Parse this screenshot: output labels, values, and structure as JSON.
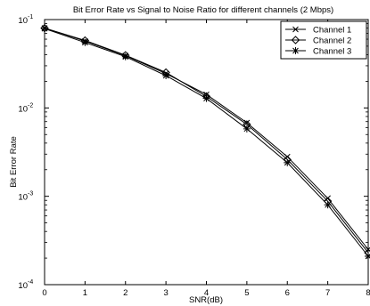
{
  "chart_data": {
    "type": "line",
    "title": "Bit Error Rate vs Signal to Noise Ratio for different channels (2 Mbps)",
    "xlabel": "SNR(dB)",
    "ylabel": "Bit Error Rate",
    "xlim": [
      0,
      8
    ],
    "ylim": [
      0.0001,
      0.1
    ],
    "yscale": "log",
    "grid": false,
    "legend_position": "top-right",
    "x": [
      0,
      1,
      2,
      3,
      4,
      5,
      6,
      7,
      8
    ],
    "x_ticks": [
      "0",
      "1",
      "2",
      "3",
      "4",
      "5",
      "6",
      "7",
      "8"
    ],
    "y_ticks": [
      {
        "base": "10",
        "exp": "-1",
        "value": 0.1
      },
      {
        "base": "10",
        "exp": "-2",
        "value": 0.01
      },
      {
        "base": "10",
        "exp": "-3",
        "value": 0.001
      },
      {
        "base": "10",
        "exp": "-4",
        "value": 0.0001
      }
    ],
    "series": [
      {
        "name": "Channel 1",
        "marker": "x",
        "values": [
          0.08,
          0.057,
          0.039,
          0.0245,
          0.0142,
          0.0068,
          0.0028,
          0.00095,
          0.00025
        ]
      },
      {
        "name": "Channel 2",
        "marker": "diamond",
        "values": [
          0.08,
          0.058,
          0.0395,
          0.0252,
          0.0135,
          0.0065,
          0.0026,
          0.00088,
          0.00023
        ]
      },
      {
        "name": "Channel 3",
        "marker": "star",
        "values": [
          0.079,
          0.055,
          0.038,
          0.0232,
          0.0128,
          0.0058,
          0.0024,
          0.0008,
          0.00021
        ]
      }
    ]
  }
}
